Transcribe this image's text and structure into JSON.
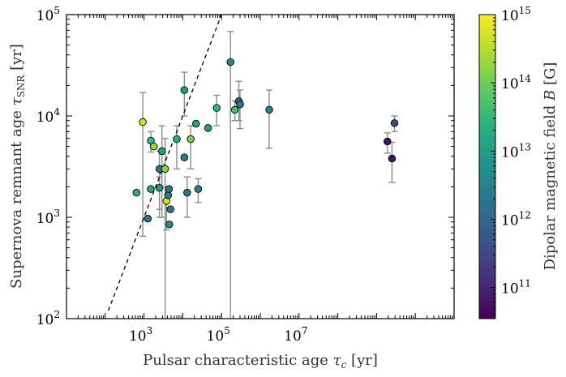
{
  "chart_data": {
    "type": "scatter",
    "xscale": "log",
    "yscale": "log",
    "xlabel": "Pulsar characteristic age",
    "xlabel_symbol": "τ",
    "xlabel_sub": "c",
    "xlabel_unit": "[yr]",
    "ylabel": "Supernova remnant age",
    "ylabel_symbol": "τ",
    "ylabel_sub": "SNR",
    "ylabel_unit": "[yr]",
    "xlim": [
      10,
      100000000000
    ],
    "ylim": [
      100,
      100000
    ],
    "x_ticks": [
      {
        "base": "10",
        "exp": "3",
        "value": 1000
      },
      {
        "base": "10",
        "exp": "5",
        "value": 100000
      },
      {
        "base": "10",
        "exp": "7",
        "value": 10000000
      }
    ],
    "y_ticks": [
      {
        "base": "10",
        "exp": "2",
        "value": 100
      },
      {
        "base": "10",
        "exp": "3",
        "value": 1000
      },
      {
        "base": "10",
        "exp": "4",
        "value": 10000
      },
      {
        "base": "10",
        "exp": "5",
        "value": 100000
      }
    ],
    "reference_line": {
      "style": "dashed",
      "description": "τSNR = τc",
      "x": [
        120,
        100000
      ]
    },
    "colorbar": {
      "label": "Dipolar magnetic field",
      "symbol": "B",
      "unit": "[G]",
      "scale": "log",
      "range": [
        35000000000.0,
        1000000000000000.0
      ],
      "colormap": "viridis",
      "ticks": [
        {
          "base": "10",
          "exp": "11",
          "value": 100000000000.0
        },
        {
          "base": "10",
          "exp": "12",
          "value": 1000000000000.0
        },
        {
          "base": "10",
          "exp": "13",
          "value": 10000000000000.0
        },
        {
          "base": "10",
          "exp": "14",
          "value": 100000000000000.0
        },
        {
          "base": "10",
          "exp": "15",
          "value": 1000000000000000.0
        }
      ]
    },
    "points": [
      {
        "x": 930,
        "y": 8700,
        "ylo": 650,
        "yhi": 17000,
        "B": 500000000000000.0
      },
      {
        "x": 640,
        "y": 1750,
        "B": 20000000000000.0
      },
      {
        "x": 1250,
        "y": 970,
        "B": 2000000000000.0
      },
      {
        "x": 1500,
        "y": 5700,
        "ylo": 4400,
        "yhi": 7000,
        "B": 30000000000000.0
      },
      {
        "x": 1500,
        "y": 1900,
        "B": 15000000000000.0
      },
      {
        "x": 1800,
        "y": 5000,
        "B": 200000000000000.0
      },
      {
        "x": 2500,
        "y": 3000,
        "ylo": 1000,
        "yhi": 4500,
        "B": 2000000000000.0
      },
      {
        "x": 2500,
        "y": 1950,
        "ylo": 1200,
        "yhi": 2500,
        "B": 8000000000000.0
      },
      {
        "x": 2900,
        "y": 4500,
        "ylo": 1000,
        "yhi": 8000,
        "B": 10000000000000.0
      },
      {
        "x": 3500,
        "y": 3000,
        "ylo": 100,
        "yhi": 6000,
        "B": 150000000000000.0
      },
      {
        "x": 3800,
        "y": 1450,
        "ylo": 750,
        "yhi": 2000,
        "B": 500000000000000.0
      },
      {
        "x": 4200,
        "y": 1650,
        "B": 3000000000000.0
      },
      {
        "x": 4400,
        "y": 1900,
        "B": 2000000000000.0
      },
      {
        "x": 4800,
        "y": 1200,
        "B": 2000000000000.0
      },
      {
        "x": 4500,
        "y": 850,
        "B": 4000000000000.0
      },
      {
        "x": 7000,
        "y": 5900,
        "ylo": 3000,
        "yhi": 8000,
        "B": 20000000000000.0
      },
      {
        "x": 11000,
        "y": 18000,
        "ylo": 10000,
        "yhi": 27000,
        "B": 10000000000000.0
      },
      {
        "x": 11000,
        "y": 3900,
        "B": 3000000000000.0
      },
      {
        "x": 13000,
        "y": 1750,
        "ylo": 1000,
        "yhi": 2500,
        "B": 2000000000000.0
      },
      {
        "x": 16000,
        "y": 5900,
        "ylo": 3000,
        "yhi": 8000,
        "B": 120000000000000.0
      },
      {
        "x": 22000,
        "y": 8400,
        "B": 12000000000000.0
      },
      {
        "x": 25000,
        "y": 1900,
        "ylo": 1400,
        "yhi": 2400,
        "B": 3000000000000.0
      },
      {
        "x": 45000,
        "y": 7600,
        "B": 10000000000000.0
      },
      {
        "x": 75000,
        "y": 12000,
        "ylo": 8000,
        "yhi": 16000,
        "B": 30000000000000.0
      },
      {
        "x": 170000,
        "y": 34000,
        "ylo": 100,
        "yhi": 68000,
        "B": 4000000000000.0
      },
      {
        "x": 220000,
        "y": 11500,
        "ylo": 9000,
        "yhi": 14000,
        "B": 50000000000000.0
      },
      {
        "x": 280000,
        "y": 14000,
        "ylo": 9000,
        "yhi": 22000,
        "B": 1000000000000.0
      },
      {
        "x": 300000,
        "y": 13000,
        "ylo": 7500,
        "yhi": 18000,
        "B": 2000000000000.0
      },
      {
        "x": 1700000,
        "y": 11500,
        "ylo": 4800,
        "yhi": 18000,
        "B": 3000000000000.0
      },
      {
        "x": 1900000000,
        "y": 5600,
        "ylo": 4300,
        "yhi": 6800,
        "B": 60000000000.0
      },
      {
        "x": 2500000000,
        "y": 3800,
        "ylo": 2200,
        "yhi": 5500,
        "B": 60000000000.0
      },
      {
        "x": 2900000000,
        "y": 8500,
        "ylo": 7000,
        "yhi": 10000,
        "B": 300000000000.0
      }
    ]
  }
}
